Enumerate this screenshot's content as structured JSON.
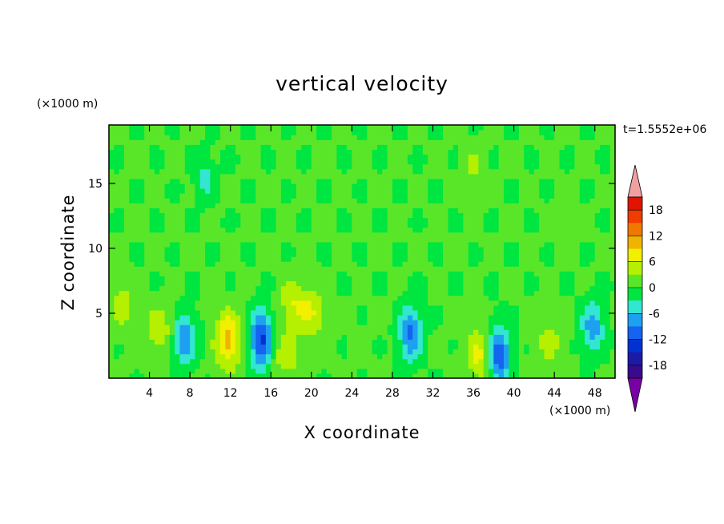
{
  "chart_data": {
    "type": "heatmap",
    "title": "vertical velocity",
    "xlabel": "X coordinate",
    "ylabel": "Z coordinate",
    "x_unit": "(×1000 m)",
    "y_unit": "(×1000 m)",
    "time_label": "t=1.5552e+06",
    "xlim": [
      0,
      50
    ],
    "ylim": [
      0,
      19.5
    ],
    "x_ticks": [
      4,
      8,
      12,
      16,
      20,
      24,
      28,
      32,
      36,
      40,
      44,
      48
    ],
    "y_ticks": [
      5,
      10,
      15
    ],
    "colorbar": {
      "levels": [
        -21,
        -18,
        -15,
        -12,
        -9,
        -6,
        -3,
        0,
        3,
        6,
        9,
        12,
        15,
        18,
        21
      ],
      "tick_labels": [
        18,
        12,
        6,
        0,
        -6,
        -12,
        -18
      ],
      "colors": [
        "#7a00a6",
        "#3a0a8c",
        "#1e1aa8",
        "#0032d2",
        "#1464f0",
        "#1ea0f0",
        "#32e6d2",
        "#00e640",
        "#5ae628",
        "#b4f000",
        "#f0f000",
        "#f0b400",
        "#f07800",
        "#f03c00",
        "#e01400",
        "#f0a0a0"
      ]
    },
    "features": [
      {
        "x": 1.3,
        "z": 5.8,
        "w": 4.5
      },
      {
        "x": 5.0,
        "z": 3.8,
        "w": 5.0
      },
      {
        "x": 7.5,
        "z": 3.0,
        "w": -9.0
      },
      {
        "x": 11.8,
        "z": 3.0,
        "w": 10.0
      },
      {
        "x": 15.0,
        "z": 3.0,
        "w": -13.0
      },
      {
        "x": 17.5,
        "z": 1.8,
        "w": 5.0
      },
      {
        "x": 18.2,
        "z": 5.8,
        "w": 5.0
      },
      {
        "x": 20.0,
        "z": 5.0,
        "w": 5.5
      },
      {
        "x": 29.8,
        "z": 3.5,
        "w": -10.0
      },
      {
        "x": 36.6,
        "z": 1.8,
        "w": 7.0
      },
      {
        "x": 38.5,
        "z": 1.8,
        "w": -12.0
      },
      {
        "x": 43.5,
        "z": 2.8,
        "w": 4.0
      },
      {
        "x": 47.8,
        "z": 4.0,
        "w": -8.0
      },
      {
        "x": 45.0,
        "z": 12.0,
        "w": 2.5
      },
      {
        "x": 9.5,
        "z": 15.5,
        "w": -4.0
      },
      {
        "x": 36.0,
        "z": 16.0,
        "w": 3.0
      }
    ]
  }
}
